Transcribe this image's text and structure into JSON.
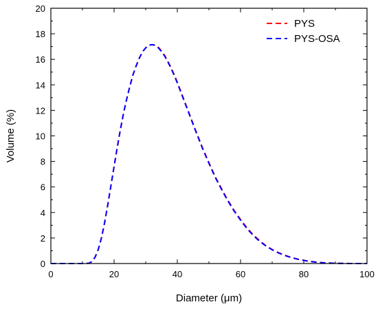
{
  "chart_data": {
    "type": "line",
    "title": "",
    "xlabel": "Diameter (μm)",
    "ylabel": "Volume (%)",
    "xlim": [
      0,
      100
    ],
    "ylim": [
      0,
      20
    ],
    "x_ticks": [
      0,
      20,
      40,
      60,
      80,
      100
    ],
    "y_ticks": [
      0,
      2,
      4,
      6,
      8,
      10,
      12,
      14,
      16,
      18,
      20
    ],
    "grid": false,
    "legend_position": "top-right",
    "series": [
      {
        "name": "PYS",
        "color": "#ff0000",
        "line_style": "dashed",
        "x": [
          0,
          5,
          10,
          12,
          13,
          14,
          15,
          16,
          17,
          18,
          19,
          20,
          21,
          22,
          23,
          24,
          25,
          26,
          27,
          28,
          29,
          30,
          31,
          32,
          33,
          34,
          35,
          36,
          37,
          38,
          39,
          40,
          42,
          44,
          46,
          48,
          50,
          52,
          54,
          56,
          58,
          60,
          62,
          64,
          66,
          68,
          70,
          72,
          74,
          76,
          78,
          80,
          82,
          84,
          86,
          88,
          90,
          92,
          95,
          100
        ],
        "y": [
          0,
          0,
          0,
          0.02,
          0.15,
          0.5,
          1.1,
          2.0,
          3.2,
          4.6,
          6.1,
          7.6,
          9.1,
          10.5,
          11.8,
          12.9,
          13.9,
          14.8,
          15.5,
          16.1,
          16.6,
          16.9,
          17.1,
          17.15,
          17.1,
          16.95,
          16.65,
          16.3,
          15.85,
          15.35,
          14.8,
          14.2,
          12.9,
          11.6,
          10.3,
          9.05,
          7.9,
          6.8,
          5.85,
          4.95,
          4.15,
          3.45,
          2.8,
          2.25,
          1.8,
          1.4,
          1.1,
          0.85,
          0.65,
          0.48,
          0.35,
          0.25,
          0.17,
          0.11,
          0.07,
          0.04,
          0.02,
          0.01,
          0,
          0
        ]
      },
      {
        "name": "PYS-OSA",
        "color": "#0000ff",
        "line_style": "dashed",
        "x": [
          0,
          5,
          10,
          12,
          13,
          14,
          15,
          16,
          17,
          18,
          19,
          20,
          21,
          22,
          23,
          24,
          25,
          26,
          27,
          28,
          29,
          30,
          31,
          32,
          33,
          34,
          35,
          36,
          37,
          38,
          39,
          40,
          42,
          44,
          46,
          48,
          50,
          52,
          54,
          56,
          58,
          60,
          62,
          64,
          66,
          68,
          70,
          72,
          74,
          76,
          78,
          80,
          82,
          84,
          86,
          88,
          90,
          92,
          95,
          100
        ],
        "y": [
          0,
          0,
          0,
          0.02,
          0.15,
          0.5,
          1.1,
          2.0,
          3.2,
          4.6,
          6.1,
          7.6,
          9.1,
          10.5,
          11.8,
          12.9,
          13.9,
          14.8,
          15.5,
          16.1,
          16.6,
          16.9,
          17.1,
          17.15,
          17.1,
          16.9,
          16.6,
          16.25,
          15.8,
          15.3,
          14.75,
          14.15,
          12.85,
          11.55,
          10.25,
          9.0,
          7.85,
          6.75,
          5.8,
          4.9,
          4.1,
          3.4,
          2.75,
          2.2,
          1.75,
          1.38,
          1.08,
          0.83,
          0.63,
          0.47,
          0.34,
          0.24,
          0.16,
          0.1,
          0.06,
          0.04,
          0.02,
          0.01,
          0,
          0
        ]
      }
    ]
  }
}
